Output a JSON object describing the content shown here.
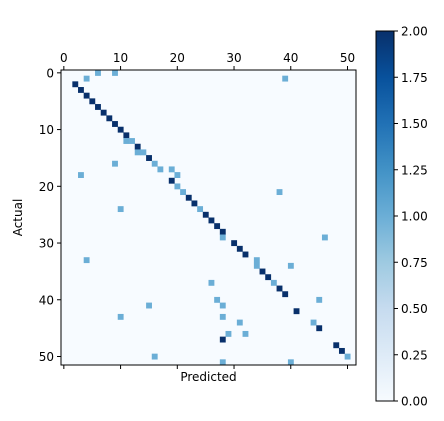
{
  "chart_data": {
    "type": "heatmap",
    "title": "",
    "xlabel": "Predicted",
    "ylabel": "Actual",
    "n_classes": 52,
    "xlim": [
      -0.5,
      51.5
    ],
    "ylim": [
      -0.5,
      51.5
    ],
    "x_ticks_top": [
      0,
      10,
      20,
      30,
      40,
      50
    ],
    "y_ticks": [
      0,
      10,
      20,
      30,
      40,
      50
    ],
    "x_tick_labels_bottom": [
      "",
      "",
      "",
      "",
      "",
      ""
    ],
    "colorbar": {
      "min": 0,
      "max": 2,
      "ticks": [
        0,
        0.25,
        0.5,
        0.75,
        1,
        1.25,
        1.5,
        1.75,
        2
      ],
      "tick_labels": [
        "0.00",
        "0.25",
        "0.50",
        "0.75",
        "1.00",
        "1.25",
        "1.50",
        "1.75",
        "2.00"
      ]
    },
    "colormap": [
      "#f7fbff",
      "#deebf7",
      "#c6dbef",
      "#9ecae1",
      "#6baed6",
      "#4292c6",
      "#2171b5",
      "#08519c",
      "#08306b"
    ],
    "nonzero_cells": [
      {
        "r": 0,
        "c": 6,
        "v": 1
      },
      {
        "r": 0,
        "c": 9,
        "v": 1
      },
      {
        "r": 1,
        "c": 4,
        "v": 1
      },
      {
        "r": 1,
        "c": 39,
        "v": 1
      },
      {
        "r": 2,
        "c": 2,
        "v": 2
      },
      {
        "r": 3,
        "c": 3,
        "v": 2
      },
      {
        "r": 4,
        "c": 4,
        "v": 2
      },
      {
        "r": 5,
        "c": 5,
        "v": 2
      },
      {
        "r": 6,
        "c": 6,
        "v": 2
      },
      {
        "r": 7,
        "c": 7,
        "v": 2
      },
      {
        "r": 8,
        "c": 8,
        "v": 2
      },
      {
        "r": 9,
        "c": 9,
        "v": 2
      },
      {
        "r": 10,
        "c": 10,
        "v": 2
      },
      {
        "r": 11,
        "c": 11,
        "v": 2
      },
      {
        "r": 12,
        "c": 11,
        "v": 1
      },
      {
        "r": 12,
        "c": 12,
        "v": 1
      },
      {
        "r": 13,
        "c": 13,
        "v": 2
      },
      {
        "r": 14,
        "c": 13,
        "v": 1
      },
      {
        "r": 14,
        "c": 14,
        "v": 1
      },
      {
        "r": 15,
        "c": 15,
        "v": 2
      },
      {
        "r": 16,
        "c": 9,
        "v": 1
      },
      {
        "r": 16,
        "c": 16,
        "v": 1
      },
      {
        "r": 17,
        "c": 17,
        "v": 1
      },
      {
        "r": 17,
        "c": 19,
        "v": 1
      },
      {
        "r": 18,
        "c": 3,
        "v": 1
      },
      {
        "r": 18,
        "c": 20,
        "v": 1
      },
      {
        "r": 19,
        "c": 19,
        "v": 2
      },
      {
        "r": 20,
        "c": 20,
        "v": 1
      },
      {
        "r": 21,
        "c": 21,
        "v": 1
      },
      {
        "r": 21,
        "c": 38,
        "v": 1
      },
      {
        "r": 22,
        "c": 22,
        "v": 2
      },
      {
        "r": 23,
        "c": 23,
        "v": 2
      },
      {
        "r": 24,
        "c": 10,
        "v": 1
      },
      {
        "r": 24,
        "c": 24,
        "v": 1
      },
      {
        "r": 25,
        "c": 25,
        "v": 2
      },
      {
        "r": 26,
        "c": 26,
        "v": 2
      },
      {
        "r": 27,
        "c": 27,
        "v": 2
      },
      {
        "r": 28,
        "c": 28,
        "v": 2
      },
      {
        "r": 29,
        "c": 28,
        "v": 1
      },
      {
        "r": 29,
        "c": 46,
        "v": 1
      },
      {
        "r": 30,
        "c": 30,
        "v": 2
      },
      {
        "r": 31,
        "c": 31,
        "v": 2
      },
      {
        "r": 32,
        "c": 32,
        "v": 2
      },
      {
        "r": 33,
        "c": 4,
        "v": 1
      },
      {
        "r": 33,
        "c": 34,
        "v": 1
      },
      {
        "r": 34,
        "c": 34,
        "v": 1
      },
      {
        "r": 34,
        "c": 40,
        "v": 1
      },
      {
        "r": 35,
        "c": 35,
        "v": 2
      },
      {
        "r": 36,
        "c": 36,
        "v": 2
      },
      {
        "r": 37,
        "c": 26,
        "v": 1
      },
      {
        "r": 37,
        "c": 37,
        "v": 1
      },
      {
        "r": 38,
        "c": 38,
        "v": 2
      },
      {
        "r": 39,
        "c": 39,
        "v": 2
      },
      {
        "r": 40,
        "c": 27,
        "v": 1
      },
      {
        "r": 40,
        "c": 45,
        "v": 1
      },
      {
        "r": 41,
        "c": 15,
        "v": 1
      },
      {
        "r": 41,
        "c": 28,
        "v": 1
      },
      {
        "r": 42,
        "c": 41,
        "v": 2
      },
      {
        "r": 43,
        "c": 10,
        "v": 1
      },
      {
        "r": 43,
        "c": 28,
        "v": 1
      },
      {
        "r": 44,
        "c": 31,
        "v": 1
      },
      {
        "r": 44,
        "c": 44,
        "v": 1
      },
      {
        "r": 45,
        "c": 45,
        "v": 2
      },
      {
        "r": 46,
        "c": 29,
        "v": 1
      },
      {
        "r": 46,
        "c": 32,
        "v": 1
      },
      {
        "r": 47,
        "c": 28,
        "v": 2
      },
      {
        "r": 48,
        "c": 48,
        "v": 2
      },
      {
        "r": 49,
        "c": 49,
        "v": 2
      },
      {
        "r": 50,
        "c": 16,
        "v": 1
      },
      {
        "r": 50,
        "c": 50,
        "v": 1
      },
      {
        "r": 51,
        "c": 28,
        "v": 1
      },
      {
        "r": 51,
        "c": 40,
        "v": 1
      }
    ]
  }
}
